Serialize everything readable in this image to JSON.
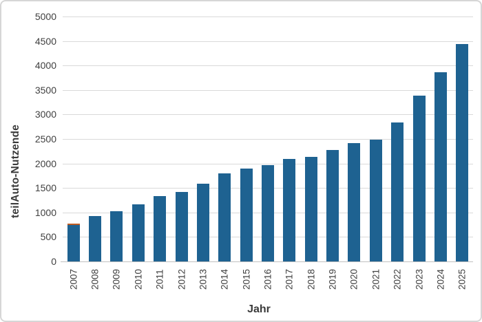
{
  "chart_data": {
    "type": "bar",
    "title": "",
    "xlabel": "Jahr",
    "ylabel": "teilAuto-Nutzende",
    "categories": [
      "2007",
      "2008",
      "2009",
      "2010",
      "2011",
      "2012",
      "2013",
      "2014",
      "2015",
      "2016",
      "2017",
      "2018",
      "2019",
      "2020",
      "2021",
      "2022",
      "2023",
      "2024",
      "2025"
    ],
    "values": [
      770,
      920,
      1030,
      1170,
      1330,
      1420,
      1590,
      1800,
      1890,
      1960,
      2090,
      2140,
      2270,
      2410,
      2480,
      2840,
      3380,
      3860,
      4440
    ],
    "ylim": [
      0,
      5000
    ],
    "ytick_step": 500,
    "yticks": [
      0,
      500,
      1000,
      1500,
      2000,
      2500,
      3000,
      3500,
      4000,
      4500,
      5000
    ],
    "grid": true,
    "legend": false,
    "colors": {
      "bar": "#1e6291",
      "first_bar_cap": "#bf5b21",
      "gridline": "#d9d9d9",
      "axis_line": "#bfbfbf",
      "tick_label": "#3f3f3f",
      "title_text": "#3a3a3a",
      "figure_border": "#d6d6d6",
      "background": "#ffffff"
    }
  }
}
